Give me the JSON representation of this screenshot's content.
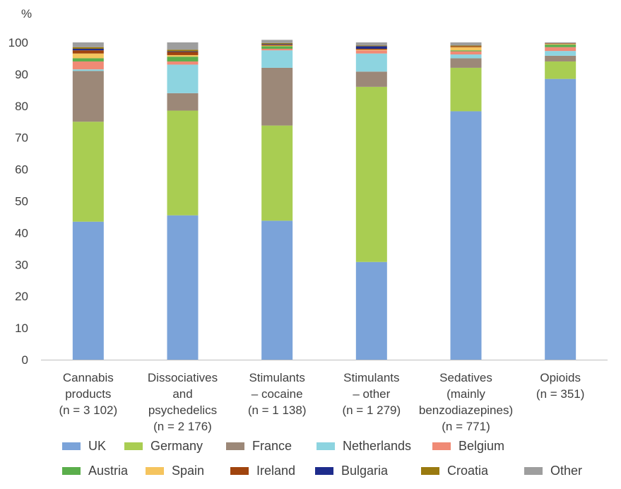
{
  "chart_data": {
    "type": "bar",
    "stacked": true,
    "y_unit_label": "%",
    "ylim": [
      0,
      100
    ],
    "yticks": [
      0,
      10,
      20,
      30,
      40,
      50,
      60,
      70,
      80,
      90,
      100
    ],
    "grid": false,
    "legend_position": "bottom",
    "categories": [
      [
        "Cannabis",
        "products",
        "(n = 3 102)"
      ],
      [
        "Dissociatives",
        "and",
        "psychedelics",
        "(n = 2 176)"
      ],
      [
        "Stimulants",
        "– cocaine",
        "(n = 1 138)"
      ],
      [
        "Stimulants",
        "– other",
        "(n = 1 279)"
      ],
      [
        "Sedatives",
        "(mainly",
        "benzodiazepines)",
        "(n = 771)"
      ],
      [
        "Opioids",
        "(n = 351)"
      ]
    ],
    "series": [
      {
        "name": "UK",
        "color": "#7BA3D9",
        "values": [
          43.5,
          45.5,
          43.8,
          30.8,
          78.3,
          88.5
        ]
      },
      {
        "name": "Germany",
        "color": "#A9CD52",
        "values": [
          31.5,
          33.0,
          30.0,
          55.2,
          13.7,
          5.5
        ]
      },
      {
        "name": "France",
        "color": "#9C8878",
        "values": [
          16.0,
          5.5,
          18.2,
          4.8,
          3.0,
          1.8
        ]
      },
      {
        "name": "Netherlands",
        "color": "#8DD4E0",
        "values": [
          0.5,
          9.0,
          5.5,
          5.7,
          1.2,
          1.5
        ]
      },
      {
        "name": "Belgium",
        "color": "#F08A75",
        "values": [
          2.5,
          1.0,
          0.5,
          1.0,
          1.0,
          1.2
        ]
      },
      {
        "name": "Austria",
        "color": "#5BAE4B",
        "values": [
          1.0,
          1.5,
          0.8,
          0.0,
          0.3,
          0.8
        ]
      },
      {
        "name": "Spain",
        "color": "#F5C45E",
        "values": [
          1.5,
          0.5,
          0.2,
          0.2,
          1.0,
          0.2
        ]
      },
      {
        "name": "Ireland",
        "color": "#A0440E",
        "values": [
          1.0,
          1.0,
          0.3,
          0.3,
          0.3,
          0.2
        ]
      },
      {
        "name": "Bulgaria",
        "color": "#1E2C8C",
        "values": [
          0.5,
          0.2,
          0.2,
          0.8,
          0.0,
          0.0
        ]
      },
      {
        "name": "Croatia",
        "color": "#9A7A10",
        "values": [
          0.5,
          0.5,
          0.3,
          0.2,
          0.2,
          0.0
        ]
      },
      {
        "name": "Other",
        "color": "#9E9E9E",
        "values": [
          1.5,
          2.3,
          1.0,
          1.0,
          1.0,
          0.3
        ]
      }
    ]
  }
}
